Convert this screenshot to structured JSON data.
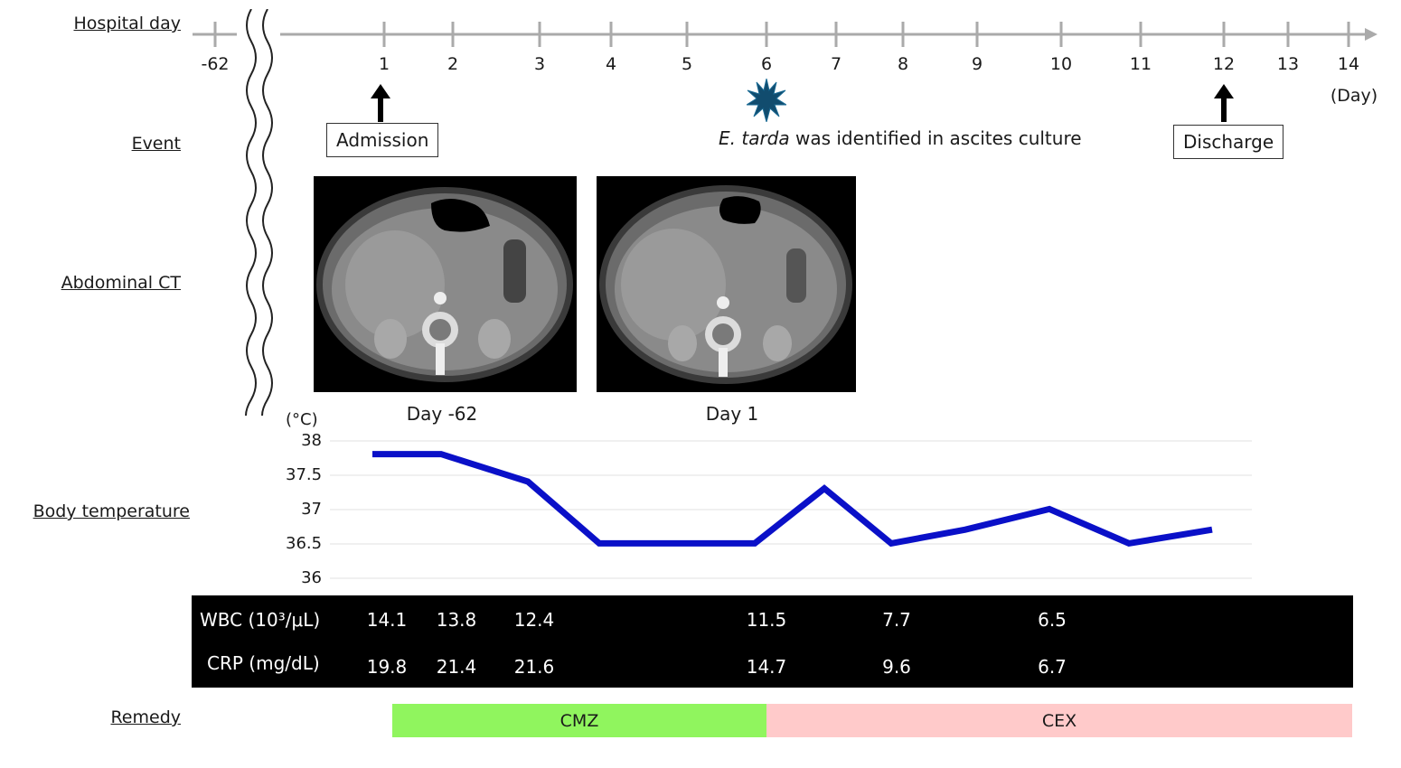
{
  "labels": {
    "hospital_day": "Hospital day",
    "event": "Event",
    "abdominal_ct": "Abdominal CT",
    "body_temperature": "Body temperature",
    "remedy": "Remedy"
  },
  "timeline": {
    "pre_tick": "-62",
    "ticks": [
      "1",
      "2",
      "3",
      "4",
      "5",
      "6",
      "7",
      "8",
      "9",
      "10",
      "11",
      "12",
      "13",
      "14"
    ],
    "unit": "(Day)"
  },
  "events": {
    "admission": "Admission",
    "discharge": "Discharge",
    "culture_italic": "E. tarda",
    "culture_rest": " was identified in ascites culture"
  },
  "ct": {
    "caption_1": "Day -62",
    "caption_2": "Day 1"
  },
  "chart_data": {
    "type": "line",
    "ylabel": "(°C)",
    "ylim": [
      36,
      38
    ],
    "yticks": [
      "38",
      "37.5",
      "37",
      "36.5",
      "36"
    ],
    "x": [
      1,
      2,
      3,
      4,
      5,
      6,
      7,
      8,
      9,
      10,
      11,
      12
    ],
    "series": [
      {
        "values": [
          37.9,
          37.9,
          37.5,
          36.6,
          36.6,
          36.6,
          37.4,
          36.6,
          36.8,
          37.1,
          36.6,
          36.8
        ],
        "color": "#0a10c8"
      }
    ],
    "grid": true
  },
  "labs": {
    "wbc_label": "WBC (10³/μL)",
    "crp_label": "CRP (mg/dL)",
    "wbc": [
      {
        "day": 1,
        "v": "14.1"
      },
      {
        "day": 2,
        "v": "13.8"
      },
      {
        "day": 3,
        "v": "12.4"
      },
      {
        "day": 6,
        "v": "11.5"
      },
      {
        "day": 8,
        "v": "7.7"
      },
      {
        "day": 10,
        "v": "6.5"
      }
    ],
    "crp": [
      {
        "day": 1,
        "v": "19.8"
      },
      {
        "day": 2,
        "v": "21.4"
      },
      {
        "day": 3,
        "v": "21.6"
      },
      {
        "day": 6,
        "v": "14.7"
      },
      {
        "day": 8,
        "v": "9.6"
      },
      {
        "day": 10,
        "v": "6.7"
      }
    ]
  },
  "remedy": {
    "cmz": "CMZ",
    "cex": "CEX",
    "cmz_color": "#90f55e",
    "cex_color": "#ffcaca"
  }
}
